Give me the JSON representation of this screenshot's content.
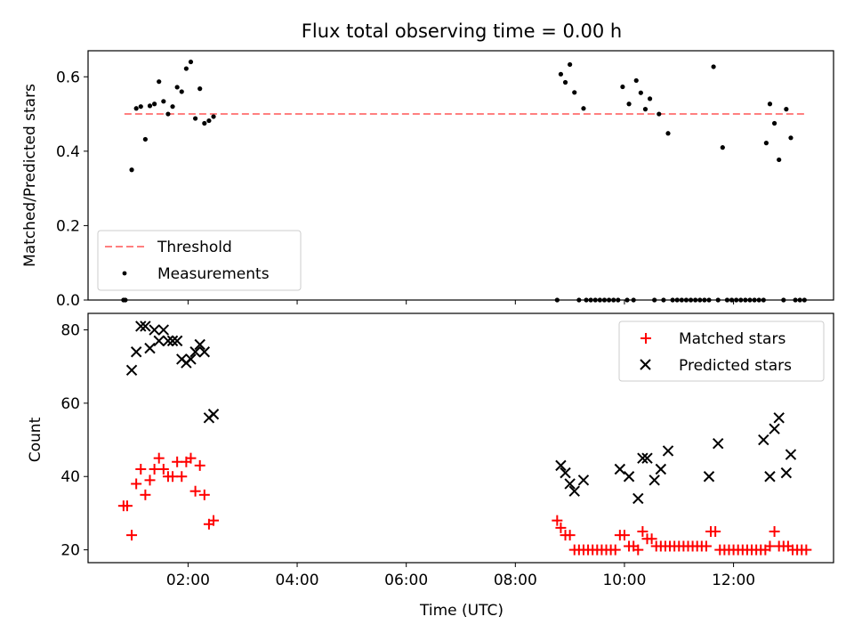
{
  "chart_data": [
    {
      "type": "scatter",
      "title": "Flux total observing time = 0.00 h",
      "xlabel": "",
      "ylabel": "Matched/Predicted stars",
      "xlim": [
        "00:10",
        "13:50"
      ],
      "ylim": [
        0,
        0.67
      ],
      "yticks": [
        0.0,
        0.2,
        0.4,
        0.6
      ],
      "ytick_labels": [
        "0.0",
        "0.2",
        "0.4",
        "0.6"
      ],
      "legend_loc": "lower left",
      "threshold": {
        "name": "Threshold",
        "value": 0.5,
        "x_range": [
          "00:50",
          "13:20"
        ],
        "color": "#ff7f7f",
        "style": "dashed"
      },
      "series": [
        {
          "name": "Measurements",
          "marker": "dot",
          "color": "#000000",
          "points": [
            [
              "00:49",
              0.0
            ],
            [
              "00:51",
              0.0
            ],
            [
              "00:58",
              0.35
            ],
            [
              "01:03",
              0.515
            ],
            [
              "01:08",
              0.52
            ],
            [
              "01:13",
              0.432
            ],
            [
              "01:18",
              0.522
            ],
            [
              "01:23",
              0.527
            ],
            [
              "01:28",
              0.587
            ],
            [
              "01:33",
              0.534
            ],
            [
              "01:38",
              0.5
            ],
            [
              "01:43",
              0.52
            ],
            [
              "01:48",
              0.572
            ],
            [
              "01:53",
              0.56
            ],
            [
              "01:58",
              0.622
            ],
            [
              "02:03",
              0.64
            ],
            [
              "02:08",
              0.488
            ],
            [
              "02:13",
              0.568
            ],
            [
              "02:18",
              0.475
            ],
            [
              "02:23",
              0.482
            ],
            [
              "02:28",
              0.493
            ],
            [
              "08:46",
              0.0
            ],
            [
              "08:50",
              0.607
            ],
            [
              "08:55",
              0.585
            ],
            [
              "09:00",
              0.633
            ],
            [
              "09:05",
              0.558
            ],
            [
              "09:10",
              0.0
            ],
            [
              "09:15",
              0.515
            ],
            [
              "09:18",
              0.0
            ],
            [
              "09:23",
              0.0
            ],
            [
              "09:28",
              0.0
            ],
            [
              "09:33",
              0.0
            ],
            [
              "09:38",
              0.0
            ],
            [
              "09:43",
              0.0
            ],
            [
              "09:48",
              0.0
            ],
            [
              "09:53",
              0.0
            ],
            [
              "09:58",
              0.573
            ],
            [
              "10:03",
              0.0
            ],
            [
              "10:05",
              0.527
            ],
            [
              "10:10",
              0.0
            ],
            [
              "10:13",
              0.59
            ],
            [
              "10:18",
              0.557
            ],
            [
              "10:23",
              0.513
            ],
            [
              "10:28",
              0.541
            ],
            [
              "10:33",
              0.0
            ],
            [
              "10:38",
              0.5
            ],
            [
              "10:43",
              0.0
            ],
            [
              "10:48",
              0.448
            ],
            [
              "10:53",
              0.0
            ],
            [
              "10:58",
              0.0
            ],
            [
              "11:03",
              0.0
            ],
            [
              "11:08",
              0.0
            ],
            [
              "11:13",
              0.0
            ],
            [
              "11:18",
              0.0
            ],
            [
              "11:23",
              0.0
            ],
            [
              "11:28",
              0.0
            ],
            [
              "11:33",
              0.0
            ],
            [
              "11:38",
              0.627
            ],
            [
              "11:43",
              0.0
            ],
            [
              "11:48",
              0.41
            ],
            [
              "11:53",
              0.0
            ],
            [
              "11:58",
              0.0
            ],
            [
              "12:03",
              0.0
            ],
            [
              "12:08",
              0.0
            ],
            [
              "12:13",
              0.0
            ],
            [
              "12:18",
              0.0
            ],
            [
              "12:23",
              0.0
            ],
            [
              "12:28",
              0.0
            ],
            [
              "12:33",
              0.0
            ],
            [
              "12:36",
              0.422
            ],
            [
              "12:40",
              0.527
            ],
            [
              "12:45",
              0.475
            ],
            [
              "12:50",
              0.377
            ],
            [
              "12:55",
              0.0
            ],
            [
              "12:58",
              0.513
            ],
            [
              "13:03",
              0.436
            ],
            [
              "13:08",
              0.0
            ],
            [
              "13:13",
              0.0
            ],
            [
              "13:18",
              0.0
            ]
          ]
        }
      ]
    },
    {
      "type": "scatter",
      "title": "",
      "xlabel": "Time (UTC)",
      "ylabel": "Count",
      "xlim": [
        "00:10",
        "13:50"
      ],
      "ylim": [
        16.5,
        84.5
      ],
      "yticks": [
        20,
        40,
        60,
        80
      ],
      "ytick_labels": [
        "20",
        "40",
        "60",
        "80"
      ],
      "xticks": [
        "02:00",
        "04:00",
        "06:00",
        "08:00",
        "10:00",
        "12:00"
      ],
      "legend_loc": "upper right",
      "series": [
        {
          "name": "Matched stars",
          "marker": "plus",
          "color": "#ff0000",
          "points": [
            [
              "00:49",
              32
            ],
            [
              "00:53",
              32
            ],
            [
              "00:58",
              24
            ],
            [
              "01:03",
              38
            ],
            [
              "01:08",
              42
            ],
            [
              "01:13",
              35
            ],
            [
              "01:18",
              39
            ],
            [
              "01:23",
              42
            ],
            [
              "01:28",
              45
            ],
            [
              "01:33",
              42
            ],
            [
              "01:38",
              40
            ],
            [
              "01:43",
              40
            ],
            [
              "01:48",
              44
            ],
            [
              "01:53",
              40
            ],
            [
              "01:58",
              44
            ],
            [
              "02:03",
              45
            ],
            [
              "02:08",
              36
            ],
            [
              "02:13",
              43
            ],
            [
              "02:18",
              35
            ],
            [
              "02:23",
              27
            ],
            [
              "02:28",
              28
            ],
            [
              "08:46",
              28
            ],
            [
              "08:50",
              26
            ],
            [
              "08:55",
              24
            ],
            [
              "09:00",
              24
            ],
            [
              "09:05",
              20
            ],
            [
              "09:10",
              20
            ],
            [
              "09:15",
              20
            ],
            [
              "09:20",
              20
            ],
            [
              "09:25",
              20
            ],
            [
              "09:30",
              20
            ],
            [
              "09:35",
              20
            ],
            [
              "09:40",
              20
            ],
            [
              "09:45",
              20
            ],
            [
              "09:50",
              20
            ],
            [
              "09:55",
              24
            ],
            [
              "10:00",
              24
            ],
            [
              "10:05",
              21
            ],
            [
              "10:10",
              21
            ],
            [
              "10:15",
              20
            ],
            [
              "10:20",
              25
            ],
            [
              "10:25",
              23
            ],
            [
              "10:30",
              23
            ],
            [
              "10:35",
              21
            ],
            [
              "10:40",
              21
            ],
            [
              "10:45",
              21
            ],
            [
              "10:50",
              21
            ],
            [
              "10:55",
              21
            ],
            [
              "11:00",
              21
            ],
            [
              "11:05",
              21
            ],
            [
              "11:10",
              21
            ],
            [
              "11:15",
              21
            ],
            [
              "11:20",
              21
            ],
            [
              "11:25",
              21
            ],
            [
              "11:30",
              21
            ],
            [
              "11:35",
              25
            ],
            [
              "11:40",
              25
            ],
            [
              "11:45",
              20
            ],
            [
              "11:50",
              20
            ],
            [
              "11:55",
              20
            ],
            [
              "12:00",
              20
            ],
            [
              "12:05",
              20
            ],
            [
              "12:10",
              20
            ],
            [
              "12:15",
              20
            ],
            [
              "12:20",
              20
            ],
            [
              "12:25",
              20
            ],
            [
              "12:30",
              20
            ],
            [
              "12:35",
              20
            ],
            [
              "12:40",
              21
            ],
            [
              "12:45",
              25
            ],
            [
              "12:50",
              21
            ],
            [
              "12:55",
              21
            ],
            [
              "13:00",
              21
            ],
            [
              "13:05",
              20
            ],
            [
              "13:10",
              20
            ],
            [
              "13:15",
              20
            ],
            [
              "13:20",
              20
            ]
          ]
        },
        {
          "name": "Predicted stars",
          "marker": "x",
          "color": "#000000",
          "points": [
            [
              "00:58",
              69
            ],
            [
              "01:03",
              74
            ],
            [
              "01:08",
              81
            ],
            [
              "01:13",
              81
            ],
            [
              "01:18",
              75
            ],
            [
              "01:23",
              80
            ],
            [
              "01:28",
              77
            ],
            [
              "01:33",
              80
            ],
            [
              "01:38",
              77
            ],
            [
              "01:43",
              77
            ],
            [
              "01:48",
              77
            ],
            [
              "01:53",
              72
            ],
            [
              "01:58",
              71
            ],
            [
              "02:03",
              72
            ],
            [
              "02:08",
              74
            ],
            [
              "02:13",
              76
            ],
            [
              "02:18",
              74
            ],
            [
              "02:23",
              56
            ],
            [
              "02:28",
              57
            ],
            [
              "08:50",
              43
            ],
            [
              "08:55",
              41
            ],
            [
              "09:00",
              38
            ],
            [
              "09:05",
              36
            ],
            [
              "09:15",
              39
            ],
            [
              "09:55",
              42
            ],
            [
              "10:05",
              40
            ],
            [
              "10:15",
              34
            ],
            [
              "10:20",
              45
            ],
            [
              "10:25",
              45
            ],
            [
              "10:33",
              39
            ],
            [
              "10:40",
              42
            ],
            [
              "10:48",
              47
            ],
            [
              "11:33",
              40
            ],
            [
              "11:43",
              49
            ],
            [
              "12:33",
              50
            ],
            [
              "12:40",
              40
            ],
            [
              "12:45",
              53
            ],
            [
              "12:50",
              56
            ],
            [
              "12:58",
              41
            ],
            [
              "13:03",
              46
            ]
          ]
        }
      ]
    }
  ]
}
